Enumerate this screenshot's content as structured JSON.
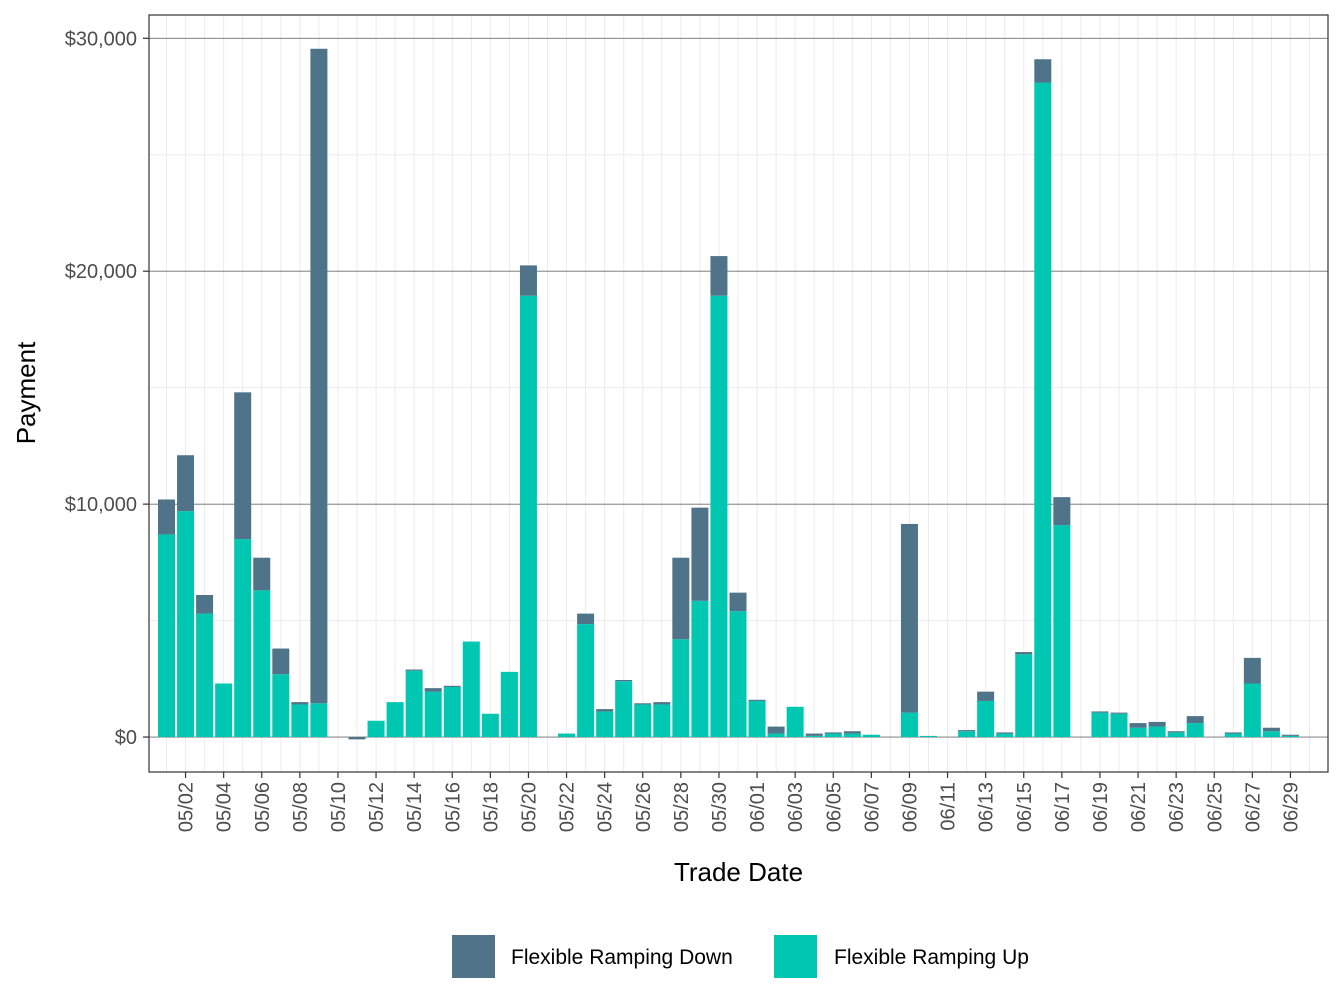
{
  "chart_data": {
    "type": "bar",
    "stacked": true,
    "xlabel": "Trade Date",
    "ylabel": "Payment",
    "ylim": [
      -1500,
      31000
    ],
    "yticks": [
      0,
      10000,
      20000,
      30000
    ],
    "ytick_labels": [
      "$0",
      "$10,000",
      "$20,000",
      "$30,000"
    ],
    "legend_position": "bottom",
    "categories": [
      "05/01",
      "05/02",
      "05/03",
      "05/04",
      "05/05",
      "05/06",
      "05/07",
      "05/08",
      "05/09",
      "05/10",
      "05/11",
      "05/12",
      "05/13",
      "05/14",
      "05/15",
      "05/16",
      "05/17",
      "05/18",
      "05/19",
      "05/20",
      "05/21",
      "05/22",
      "05/23",
      "05/24",
      "05/25",
      "05/26",
      "05/27",
      "05/28",
      "05/29",
      "05/30",
      "05/31",
      "06/01",
      "06/02",
      "06/03",
      "06/04",
      "06/05",
      "06/06",
      "06/07",
      "06/08",
      "06/09",
      "06/10",
      "06/11",
      "06/12",
      "06/13",
      "06/14",
      "06/15",
      "06/16",
      "06/17",
      "06/18",
      "06/19",
      "06/20",
      "06/21",
      "06/22",
      "06/23",
      "06/24",
      "06/25",
      "06/26",
      "06/27",
      "06/28",
      "06/29",
      "06/30"
    ],
    "tick_labels": [
      "05/02",
      "05/04",
      "05/06",
      "05/08",
      "05/10",
      "05/12",
      "05/14",
      "05/16",
      "05/18",
      "05/20",
      "05/22",
      "05/24",
      "05/26",
      "05/28",
      "05/30",
      "06/01",
      "06/03",
      "06/05",
      "06/07",
      "06/09",
      "06/11",
      "06/13",
      "06/15",
      "06/17",
      "06/19",
      "06/21",
      "06/23",
      "06/25",
      "06/27",
      "06/29"
    ],
    "series": [
      {
        "name": "Flexible Ramping Down",
        "color": "#4f7489",
        "values": [
          1500,
          2400,
          800,
          0,
          6300,
          1400,
          1100,
          100,
          28100,
          0,
          -100,
          0,
          0,
          50,
          150,
          50,
          0,
          0,
          0,
          1300,
          0,
          0,
          450,
          100,
          50,
          50,
          100,
          3500,
          4000,
          1700,
          800,
          50,
          300,
          0,
          100,
          50,
          100,
          0,
          0,
          8100,
          0,
          0,
          50,
          400,
          50,
          100,
          1000,
          1200,
          0,
          50,
          50,
          200,
          200,
          50,
          300,
          0,
          50,
          1100,
          150,
          50,
          0
        ]
      },
      {
        "name": "Flexible Ramping Up",
        "color": "#00c7b1",
        "values": [
          8700,
          9700,
          5300,
          2300,
          8500,
          6300,
          2700,
          1400,
          1450,
          0,
          0,
          700,
          1500,
          2850,
          1950,
          2150,
          4100,
          1000,
          2800,
          18950,
          0,
          150,
          4850,
          1100,
          2400,
          1400,
          1400,
          4200,
          5850,
          18950,
          5400,
          1550,
          150,
          1300,
          50,
          150,
          150,
          100,
          0,
          1050,
          50,
          0,
          250,
          1550,
          150,
          3550,
          28100,
          9100,
          0,
          1050,
          1000,
          400,
          450,
          200,
          600,
          0,
          150,
          2300,
          250,
          50,
          0
        ]
      }
    ]
  }
}
